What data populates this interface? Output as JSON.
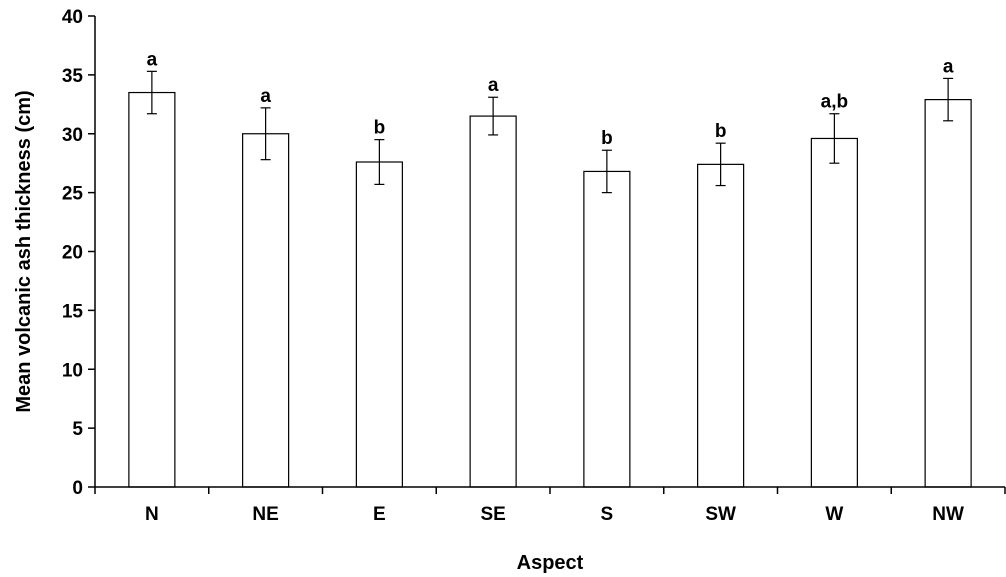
{
  "chart_data": {
    "type": "bar",
    "categories": [
      "N",
      "NE",
      "E",
      "SE",
      "S",
      "SW",
      "W",
      "NW"
    ],
    "values": [
      33.5,
      30.0,
      27.6,
      31.5,
      26.8,
      27.4,
      29.6,
      32.9
    ],
    "error": [
      1.8,
      2.2,
      1.9,
      1.6,
      1.8,
      1.8,
      2.1,
      1.8
    ],
    "significance_labels": [
      "a",
      "a",
      "b",
      "a",
      "b",
      "b",
      "a,b",
      "a"
    ],
    "xlabel": "Aspect",
    "ylabel": "Mean volcanic ash thickness (cm)",
    "ylim": [
      0,
      40
    ],
    "yticks": [
      0,
      5,
      10,
      15,
      20,
      25,
      30,
      35,
      40
    ],
    "grid": false,
    "bar_fill": "#ffffff",
    "bar_stroke": "#000000"
  }
}
